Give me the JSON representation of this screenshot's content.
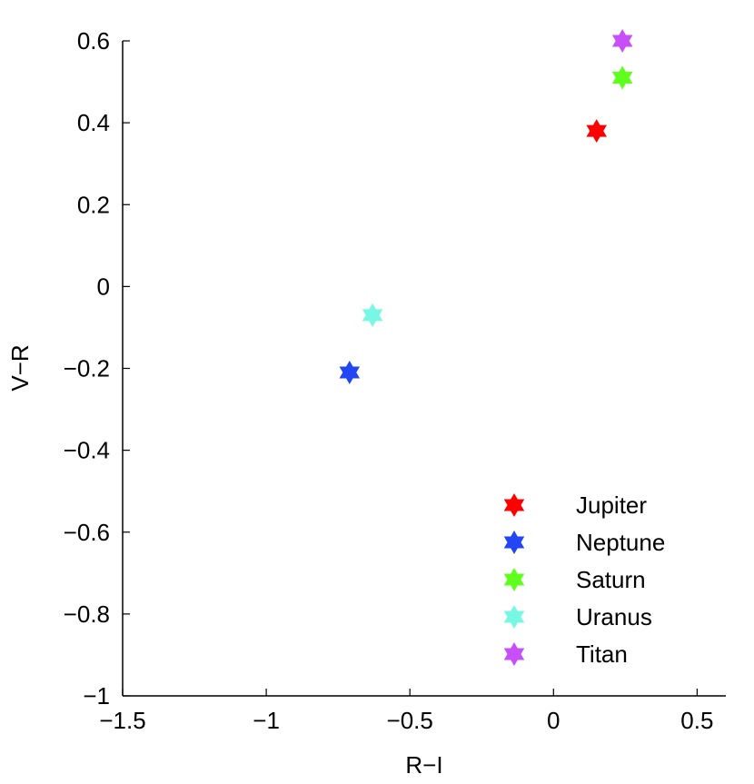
{
  "chart_data": {
    "type": "scatter",
    "xlabel": "R−I",
    "ylabel": "V−R",
    "xlim": [
      -1.5,
      0.6
    ],
    "ylim": [
      -1,
      0.6
    ],
    "xticks": [
      -1.5,
      -1,
      -0.5,
      0,
      0.5
    ],
    "xtick_labels": [
      "−1.5",
      "−1",
      "−0.5",
      "0",
      "0.5"
    ],
    "yticks": [
      -1,
      -0.8,
      -0.6,
      -0.4,
      -0.2,
      0,
      0.2,
      0.4,
      0.6
    ],
    "ytick_labels": [
      "−1",
      "−0.8",
      "−0.6",
      "−0.4",
      "−0.2",
      "0",
      "0.2",
      "0.4",
      "0.6"
    ],
    "grid": false,
    "legend_position": "bottom-right",
    "marker": "hexagram",
    "series": [
      {
        "name": "Jupiter",
        "color": "#ff0000",
        "points": [
          {
            "x": 0.15,
            "y": 0.38
          }
        ]
      },
      {
        "name": "Neptune",
        "color": "#2346f5",
        "points": [
          {
            "x": -0.71,
            "y": -0.21
          }
        ]
      },
      {
        "name": "Saturn",
        "color": "#5fff1e",
        "points": [
          {
            "x": 0.24,
            "y": 0.51
          }
        ]
      },
      {
        "name": "Uranus",
        "color": "#78f8e4",
        "points": [
          {
            "x": -0.63,
            "y": -0.07
          }
        ]
      },
      {
        "name": "Titan",
        "color": "#c84ff8",
        "points": [
          {
            "x": 0.24,
            "y": 0.6
          }
        ]
      }
    ]
  }
}
